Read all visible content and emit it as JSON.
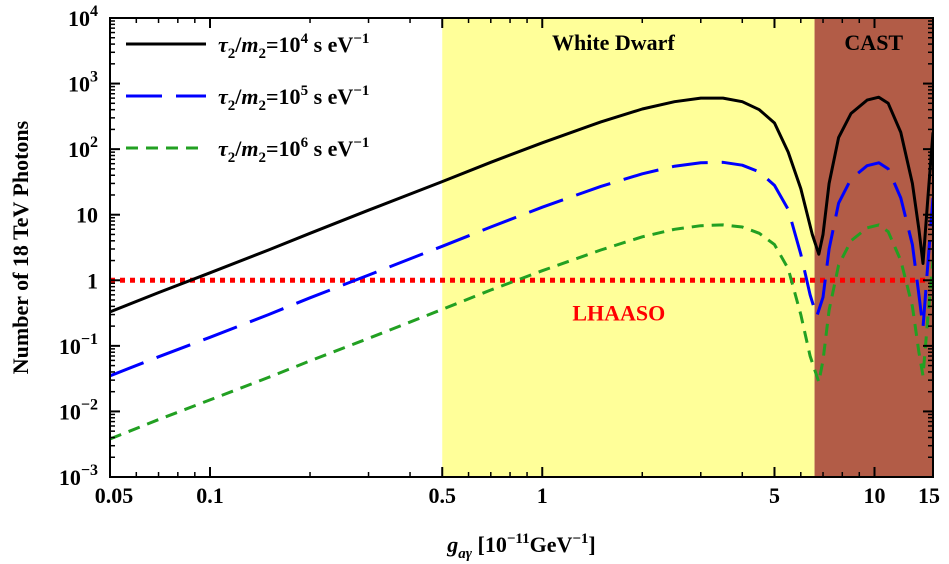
{
  "chart_data": {
    "type": "line",
    "xscale": "log",
    "yscale": "log",
    "xlim": [
      0.05,
      15
    ],
    "ylim": [
      0.001,
      10000
    ],
    "xlabel": {
      "main": "g",
      "sub": "aγ",
      "rest": " [10",
      "sup": "−11",
      "tail": "GeV",
      "sup2": "−1",
      "close": "]"
    },
    "ylabel": "Number of 18 TeV Photons",
    "x_ticks": [
      {
        "v": 0.05,
        "label": "0.05"
      },
      {
        "v": 0.1,
        "label": "0.1"
      },
      {
        "v": 0.5,
        "label": "0.5"
      },
      {
        "v": 1,
        "label": "1"
      },
      {
        "v": 5,
        "label": "5"
      },
      {
        "v": 10,
        "label": "10"
      },
      {
        "v": 15,
        "label": "15"
      }
    ],
    "y_ticks": [
      {
        "v": 0.001,
        "base": "10",
        "exp": "−3"
      },
      {
        "v": 0.01,
        "base": "10",
        "exp": "−2"
      },
      {
        "v": 0.1,
        "base": "10",
        "exp": "−1"
      },
      {
        "v": 1,
        "base": "1",
        "exp": ""
      },
      {
        "v": 10,
        "base": "10",
        "exp": ""
      },
      {
        "v": 100,
        "base": "10",
        "exp": "2"
      },
      {
        "v": 1000,
        "base": "10",
        "exp": "3"
      },
      {
        "v": 10000,
        "base": "10",
        "exp": "4"
      }
    ],
    "regions": [
      {
        "label": "White Dwarf",
        "x_range": [
          0.5,
          6.6
        ],
        "color": "#ffff99",
        "text_color": "#000000"
      },
      {
        "label": "CAST",
        "x_range": [
          6.6,
          15
        ],
        "color": "#b25c47",
        "text_color": "#000000"
      }
    ],
    "threshold": {
      "label": "LHAASO",
      "y": 1,
      "color": "#ff0000"
    },
    "legend_position": "top-left",
    "series": [
      {
        "name": {
          "tau": "τ",
          "sub1": "2",
          "slash": "/",
          "m": "m",
          "sub2": "2",
          "eq": "=10",
          "exp": "4",
          "unit": " s eV",
          "unitexp": "−1"
        },
        "color": "#000000",
        "dash": "solid",
        "x": [
          0.05,
          0.07,
          0.1,
          0.15,
          0.2,
          0.3,
          0.5,
          0.7,
          1,
          1.5,
          2,
          2.5,
          3,
          3.5,
          4,
          4.5,
          5,
          5.5,
          6,
          6.5,
          6.8,
          7,
          7.3,
          7.8,
          8.5,
          9.5,
          10.3,
          11,
          12,
          13,
          13.6,
          14,
          14.5,
          15
        ],
        "y": [
          0.33,
          0.65,
          1.3,
          2.9,
          5.2,
          11.7,
          32,
          63,
          125,
          260,
          410,
          530,
          600,
          600,
          530,
          400,
          250,
          90,
          25,
          5,
          2.5,
          5,
          30,
          150,
          350,
          560,
          620,
          500,
          180,
          30,
          6,
          1.8,
          20,
          180
        ]
      },
      {
        "name": {
          "tau": "τ",
          "sub1": "2",
          "slash": "/",
          "m": "m",
          "sub2": "2",
          "eq": "=10",
          "exp": "5",
          "unit": " s eV",
          "unitexp": "−1"
        },
        "color": "#0000ff",
        "dash": "long",
        "x": [
          0.05,
          0.07,
          0.1,
          0.15,
          0.2,
          0.3,
          0.5,
          0.7,
          1,
          1.5,
          2,
          2.5,
          3,
          3.5,
          4,
          4.5,
          5,
          5.5,
          6,
          6.4,
          6.7,
          7,
          7.3,
          7.8,
          8.5,
          9.5,
          10.3,
          11,
          12,
          13,
          13.6,
          14,
          14.5,
          15
        ],
        "y": [
          0.035,
          0.068,
          0.135,
          0.3,
          0.54,
          1.2,
          3.3,
          6.5,
          13,
          27,
          42,
          55,
          62,
          63,
          57,
          45,
          28,
          12,
          2.5,
          0.6,
          0.28,
          0.55,
          3,
          15,
          35,
          56,
          62,
          50,
          18,
          3.5,
          0.6,
          0.19,
          2,
          18
        ]
      },
      {
        "name": {
          "tau": "τ",
          "sub1": "2",
          "slash": "/",
          "m": "m",
          "sub2": "2",
          "eq": "=10",
          "exp": "6",
          "unit": " s eV",
          "unitexp": "−1"
        },
        "color": "#22a022",
        "dash": "short",
        "x": [
          0.05,
          0.07,
          0.1,
          0.15,
          0.2,
          0.3,
          0.5,
          0.7,
          1,
          1.5,
          2,
          2.5,
          3,
          3.5,
          4,
          4.5,
          5,
          5.5,
          6,
          6.4,
          6.8,
          7,
          7.3,
          7.8,
          8.5,
          9.5,
          10.3,
          11,
          12,
          13,
          13.6,
          14,
          14.5,
          15
        ],
        "y": [
          0.0038,
          0.0075,
          0.015,
          0.033,
          0.059,
          0.13,
          0.36,
          0.71,
          1.4,
          2.9,
          4.6,
          6,
          6.8,
          7,
          6.5,
          5.2,
          3.5,
          1.5,
          0.3,
          0.07,
          0.028,
          0.06,
          0.35,
          1.7,
          4,
          6.3,
          7,
          5.5,
          2,
          0.4,
          0.08,
          0.035,
          0.3,
          2
        ]
      }
    ]
  }
}
